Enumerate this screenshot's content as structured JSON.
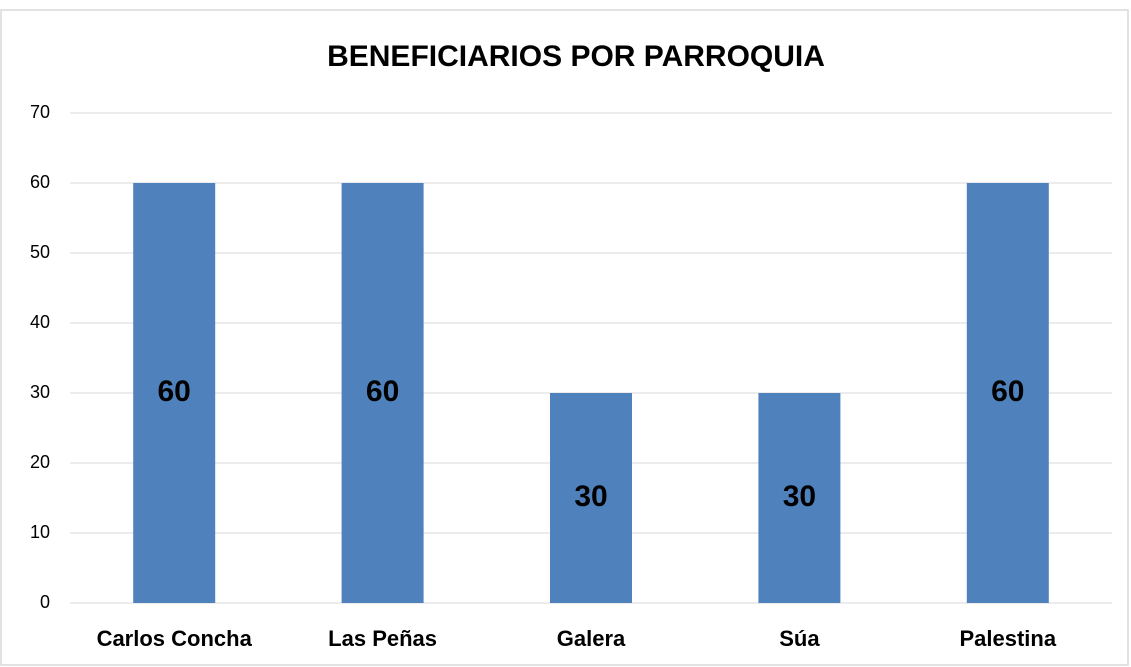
{
  "chart_data": {
    "type": "bar",
    "title": "BENEFICIARIOS POR PARROQUIA",
    "categories": [
      "Carlos Concha",
      "Las Peñas",
      "Galera",
      "Súa",
      "Palestina"
    ],
    "values": [
      60,
      60,
      30,
      30,
      60
    ],
    "color": "#4f81bd",
    "ylim": [
      0,
      70
    ],
    "yticks": [
      0,
      10,
      20,
      30,
      40,
      50,
      60,
      70
    ],
    "grid": true
  }
}
